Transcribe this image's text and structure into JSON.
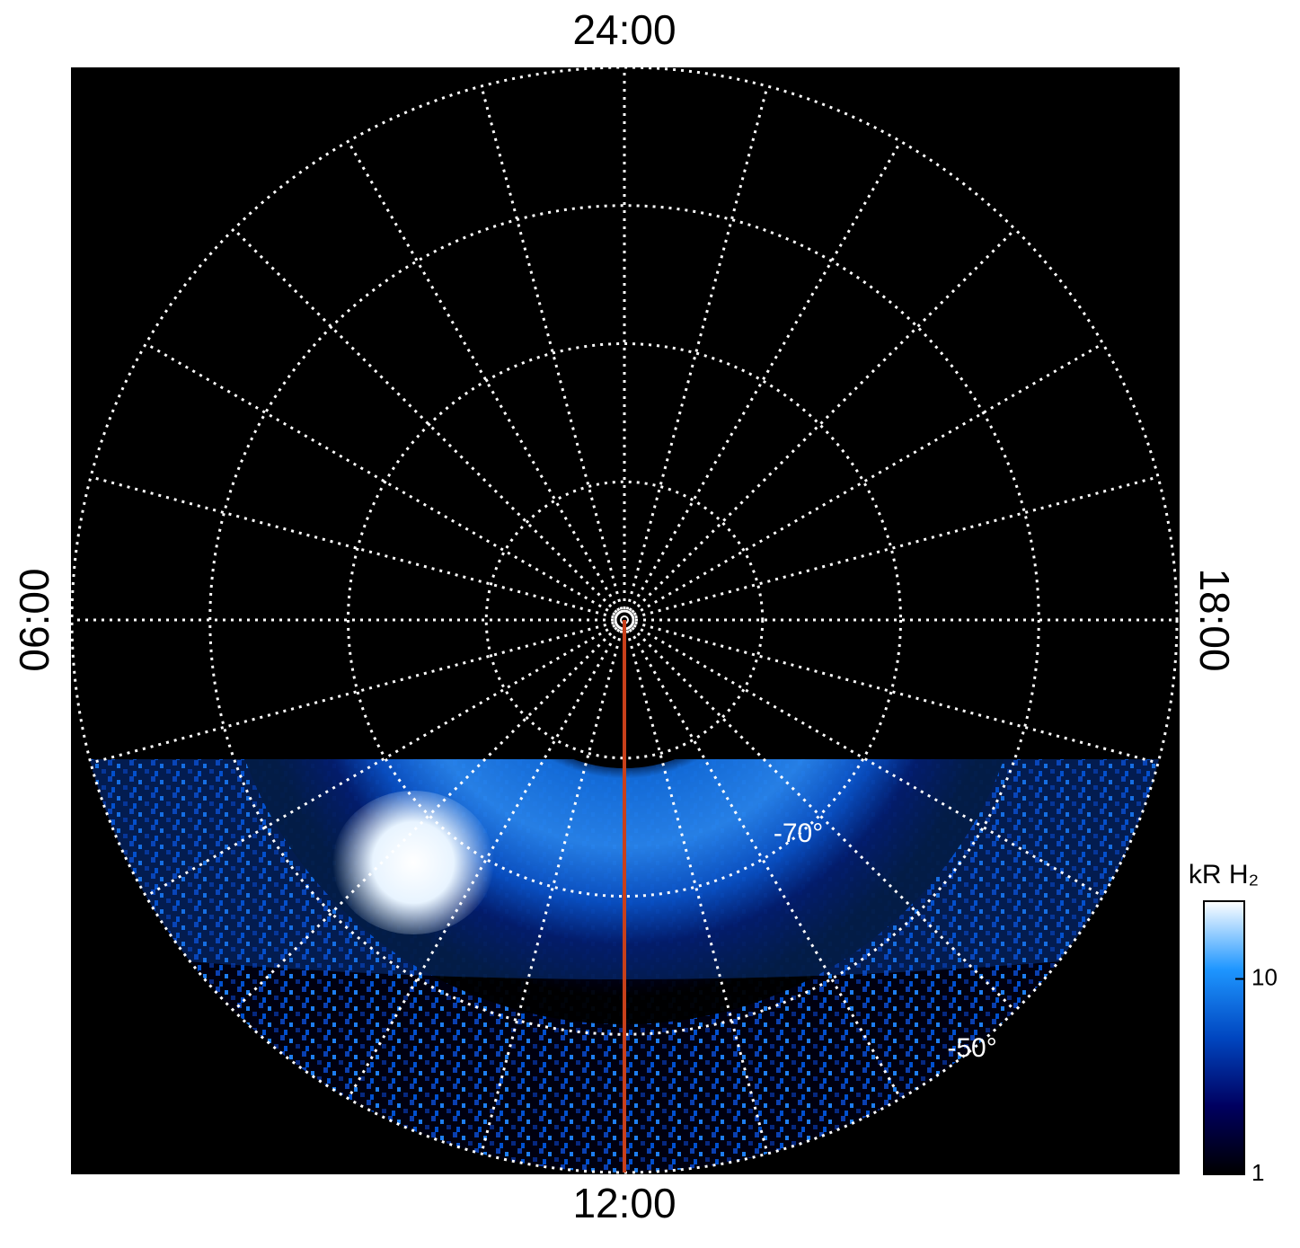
{
  "chart_data": {
    "type": "polar",
    "thetalim": [
      0,
      24
    ],
    "theta_grid_step": 1,
    "theta_ticks": [
      {
        "value": 24,
        "label": "24:00"
      },
      {
        "value": 6,
        "label": "06:00"
      },
      {
        "value": 12,
        "label": "12:00"
      },
      {
        "value": 18,
        "label": "18:00"
      }
    ],
    "rlim": [
      -90,
      -50
    ],
    "rgrid": [
      -80,
      -70,
      -60,
      -50
    ],
    "rticks": [
      {
        "value": -70,
        "label": "-70°"
      },
      {
        "value": -50,
        "label": "-50°"
      }
    ],
    "grid": true,
    "highlight_meridian": {
      "value": 12,
      "color": "#c8401a"
    },
    "colorbar": {
      "title": "kR H₂",
      "log": true,
      "lim": [
        1,
        25
      ],
      "ticks": [
        1,
        10
      ],
      "colors": [
        "#000000",
        "#000060",
        "#0046c0",
        "#1e96ff",
        "#ffffff"
      ]
    }
  }
}
